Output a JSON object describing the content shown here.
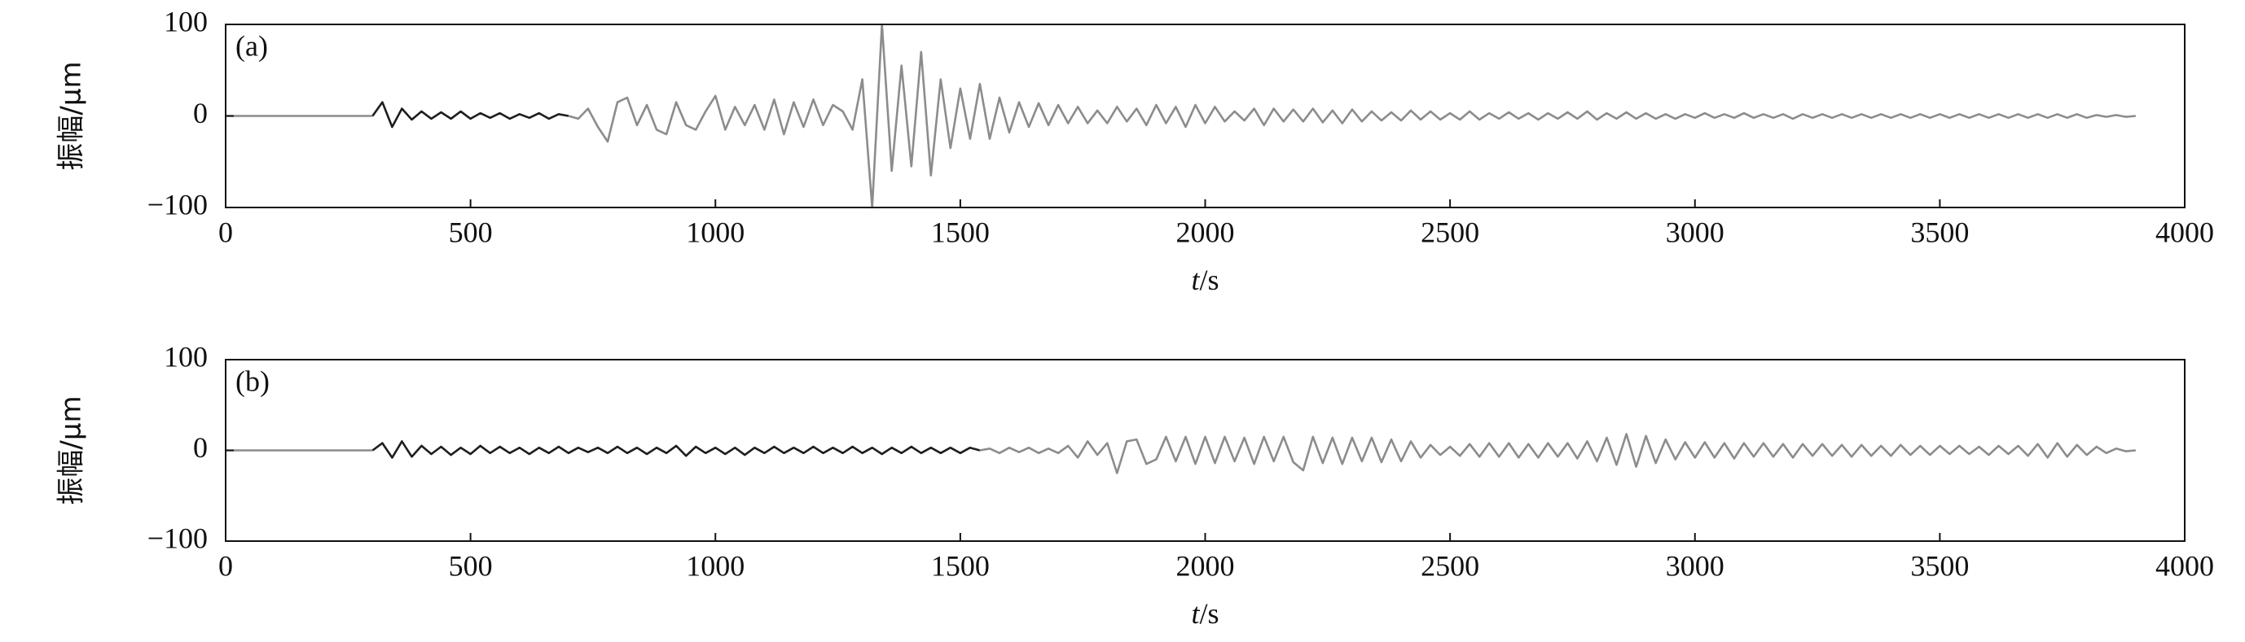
{
  "chart_data": [
    {
      "type": "line",
      "annotation": "(a)",
      "xlabel": "t/s",
      "ylabel": "振幅/μm",
      "xlim": [
        0,
        4000
      ],
      "xticks": [
        0,
        500,
        1000,
        1500,
        2000,
        2500,
        3000,
        3500,
        4000
      ],
      "ylim": [
        -100,
        100
      ],
      "yticks": [
        {
          "value": -100,
          "label": "−100"
        },
        0,
        100
      ],
      "series": [
        {
          "color": "#8c8c8c",
          "x": [
            0,
            20,
            40,
            60,
            80,
            100,
            120,
            140,
            160,
            180,
            200,
            220,
            240,
            260,
            280,
            300
          ],
          "values": [
            0,
            0,
            0,
            0,
            0,
            0,
            0,
            0,
            0,
            0,
            0,
            0,
            0,
            0,
            0,
            0
          ]
        },
        {
          "color": "#1e1e1e",
          "x": [
            300,
            320,
            340,
            360,
            380,
            400,
            420,
            440,
            460,
            480,
            500,
            520,
            540,
            560,
            580,
            600,
            620,
            640,
            660,
            680,
            700
          ],
          "values": [
            0,
            15,
            -12,
            8,
            -4,
            5,
            -3,
            4,
            -3,
            5,
            -3,
            3,
            -2,
            3,
            -3,
            2,
            -2,
            3,
            -3,
            2,
            0
          ]
        },
        {
          "color": "#8c8c8c",
          "x": [
            700,
            720,
            740,
            760,
            780,
            800,
            820,
            840,
            860,
            880,
            900,
            920,
            940,
            960,
            980,
            1000,
            1020,
            1040,
            1060,
            1080,
            1100,
            1120,
            1140,
            1160,
            1180,
            1200,
            1220,
            1240,
            1260,
            1280,
            1300,
            1320,
            1340,
            1360,
            1380,
            1400,
            1420,
            1440,
            1460,
            1480,
            1500,
            1520,
            1540,
            1560,
            1580,
            1600,
            1620,
            1640,
            1660,
            1680,
            1700,
            1720,
            1740,
            1760,
            1780,
            1800,
            1820,
            1840,
            1860,
            1880,
            1900,
            1920,
            1940,
            1960,
            1980,
            2000,
            2020,
            2040,
            2060,
            2080,
            2100,
            2120,
            2140,
            2160,
            2180,
            2200,
            2220,
            2240,
            2260,
            2280,
            2300,
            2320,
            2340,
            2360,
            2380,
            2400,
            2420,
            2440,
            2460,
            2480,
            2500,
            2520,
            2540,
            2560,
            2580,
            2600,
            2620,
            2640,
            2660,
            2680,
            2700,
            2720,
            2740,
            2760,
            2780,
            2800,
            2820,
            2840,
            2860,
            2880,
            2900,
            2920,
            2940,
            2960,
            2980,
            3000,
            3020,
            3040,
            3060,
            3080,
            3100,
            3120,
            3140,
            3160,
            3180,
            3200,
            3220,
            3240,
            3260,
            3280,
            3300,
            3320,
            3340,
            3360,
            3380,
            3400,
            3420,
            3440,
            3460,
            3480,
            3500,
            3520,
            3540,
            3560,
            3580,
            3600,
            3620,
            3640,
            3660,
            3680,
            3700,
            3720,
            3740,
            3760,
            3780,
            3800,
            3820,
            3840,
            3860,
            3880,
            3900
          ],
          "values": [
            0,
            -3,
            8,
            -12,
            -28,
            15,
            20,
            -10,
            12,
            -15,
            -20,
            15,
            -10,
            -15,
            5,
            22,
            -15,
            10,
            -10,
            12,
            -15,
            18,
            -20,
            15,
            -12,
            18,
            -10,
            12,
            5,
            -15,
            40,
            -100,
            100,
            -60,
            55,
            -55,
            70,
            -65,
            40,
            -35,
            30,
            -25,
            35,
            -25,
            20,
            -18,
            15,
            -12,
            14,
            -10,
            12,
            -8,
            10,
            -8,
            6,
            -8,
            10,
            -6,
            8,
            -10,
            12,
            -8,
            10,
            -12,
            12,
            -8,
            10,
            -6,
            5,
            -5,
            8,
            -10,
            8,
            -6,
            7,
            -6,
            8,
            -7,
            6,
            -8,
            7,
            -6,
            5,
            -5,
            4,
            -5,
            6,
            -4,
            5,
            -4,
            3,
            -4,
            5,
            -4,
            3,
            -3,
            4,
            -3,
            3,
            -4,
            3,
            -3,
            4,
            -3,
            5,
            -4,
            3,
            -3,
            4,
            -3,
            3,
            -3,
            2,
            -3,
            2,
            -2,
            3,
            -2,
            2,
            -2,
            3,
            -2,
            2,
            -2,
            2,
            -3,
            2,
            -2,
            2,
            -2,
            2,
            -2,
            2,
            -2,
            2,
            -2,
            2,
            -2,
            2,
            -2,
            2,
            -2,
            2,
            -2,
            2,
            -2,
            2,
            -2,
            2,
            -2,
            2,
            -2,
            2,
            -2,
            2,
            -2,
            1,
            -1,
            1,
            -1,
            0
          ]
        }
      ]
    },
    {
      "type": "line",
      "annotation": "(b)",
      "xlabel": "t/s",
      "ylabel": "振幅/μm",
      "xlim": [
        0,
        4000
      ],
      "xticks": [
        0,
        500,
        1000,
        1500,
        2000,
        2500,
        3000,
        3500,
        4000
      ],
      "ylim": [
        -100,
        100
      ],
      "yticks": [
        {
          "value": -100,
          "label": "−100"
        },
        0,
        100
      ],
      "series": [
        {
          "color": "#8c8c8c",
          "x": [
            0,
            20,
            40,
            60,
            80,
            100,
            120,
            140,
            160,
            180,
            200,
            220,
            240,
            260,
            280,
            300
          ],
          "values": [
            0,
            0,
            0,
            0,
            0,
            0,
            0,
            0,
            0,
            0,
            0,
            0,
            0,
            0,
            0,
            0
          ]
        },
        {
          "color": "#1e1e1e",
          "x": [
            300,
            320,
            340,
            360,
            380,
            400,
            420,
            440,
            460,
            480,
            500,
            520,
            540,
            560,
            580,
            600,
            620,
            640,
            660,
            680,
            700,
            720,
            740,
            760,
            780,
            800,
            820,
            840,
            860,
            880,
            900,
            920,
            940,
            960,
            980,
            1000,
            1020,
            1040,
            1060,
            1080,
            1100,
            1120,
            1140,
            1160,
            1180,
            1200,
            1220,
            1240,
            1260,
            1280,
            1300,
            1320,
            1340,
            1360,
            1380,
            1400,
            1420,
            1440,
            1460,
            1480,
            1500,
            1520,
            1540
          ],
          "values": [
            0,
            8,
            -8,
            10,
            -7,
            5,
            -4,
            4,
            -5,
            3,
            -4,
            5,
            -3,
            4,
            -3,
            3,
            -4,
            3,
            -3,
            4,
            -3,
            3,
            -2,
            3,
            -3,
            4,
            -3,
            3,
            -4,
            3,
            -3,
            5,
            -6,
            4,
            -3,
            3,
            -4,
            3,
            -5,
            3,
            -3,
            4,
            -3,
            3,
            -3,
            4,
            -3,
            3,
            -3,
            4,
            -3,
            3,
            -4,
            3,
            -3,
            4,
            -3,
            3,
            -3,
            3,
            -3,
            3,
            0
          ]
        },
        {
          "color": "#8c8c8c",
          "x": [
            1540,
            1560,
            1580,
            1600,
            1620,
            1640,
            1660,
            1680,
            1700,
            1720,
            1740,
            1760,
            1780,
            1800,
            1820,
            1840,
            1860,
            1880,
            1900,
            1920,
            1940,
            1960,
            1980,
            2000,
            2020,
            2040,
            2060,
            2080,
            2100,
            2120,
            2140,
            2160,
            2180,
            2200,
            2220,
            2240,
            2260,
            2280,
            2300,
            2320,
            2340,
            2360,
            2380,
            2400,
            2420,
            2440,
            2460,
            2480,
            2500,
            2520,
            2540,
            2560,
            2580,
            2600,
            2620,
            2640,
            2660,
            2680,
            2700,
            2720,
            2740,
            2760,
            2780,
            2800,
            2820,
            2840,
            2860,
            2880,
            2900,
            2920,
            2940,
            2960,
            2980,
            3000,
            3020,
            3040,
            3060,
            3080,
            3100,
            3120,
            3140,
            3160,
            3180,
            3200,
            3220,
            3240,
            3260,
            3280,
            3300,
            3320,
            3340,
            3360,
            3380,
            3400,
            3420,
            3440,
            3460,
            3480,
            3500,
            3520,
            3540,
            3560,
            3580,
            3600,
            3620,
            3640,
            3660,
            3680,
            3700,
            3720,
            3740,
            3760,
            3780,
            3800,
            3820,
            3840,
            3860,
            3880,
            3900
          ],
          "values": [
            0,
            2,
            -3,
            3,
            -2,
            3,
            -3,
            2,
            -3,
            5,
            -8,
            10,
            -5,
            8,
            -25,
            10,
            12,
            -15,
            -10,
            15,
            -12,
            15,
            -15,
            15,
            -14,
            15,
            -12,
            14,
            -15,
            15,
            -12,
            15,
            -13,
            -22,
            15,
            -14,
            14,
            -15,
            14,
            -12,
            14,
            -13,
            12,
            -12,
            10,
            -8,
            6,
            -5,
            4,
            -6,
            7,
            -7,
            8,
            -7,
            8,
            -8,
            7,
            -8,
            8,
            -7,
            8,
            -9,
            10,
            -12,
            14,
            -16,
            18,
            -18,
            16,
            -14,
            12,
            -10,
            9,
            -8,
            9,
            -8,
            8,
            -9,
            8,
            -7,
            8,
            -7,
            7,
            -8,
            7,
            -6,
            7,
            -6,
            6,
            -7,
            6,
            -6,
            5,
            -6,
            6,
            -5,
            5,
            -5,
            5,
            -4,
            5,
            -4,
            4,
            -5,
            5,
            -4,
            5,
            -6,
            7,
            -8,
            8,
            -7,
            6,
            -5,
            4,
            -3,
            2,
            -1,
            0
          ]
        }
      ]
    }
  ]
}
